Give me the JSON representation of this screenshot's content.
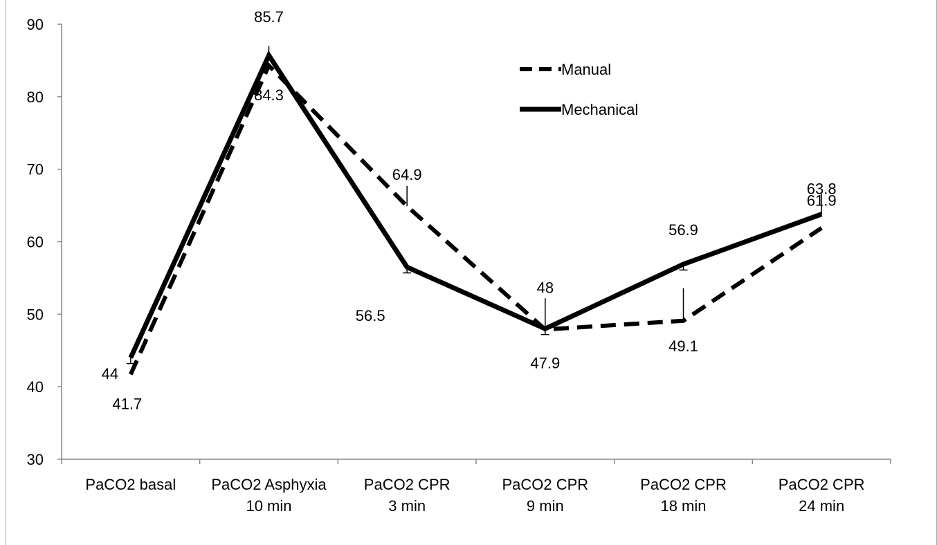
{
  "chart_data": {
    "type": "line",
    "title": "",
    "xlabel": "",
    "ylabel": "",
    "ylim": [
      30,
      90
    ],
    "y_ticks": [
      "30",
      "40",
      "50",
      "60",
      "70",
      "80",
      "90"
    ],
    "categories": [
      [
        "PaCO2 basal"
      ],
      [
        "PaCO2 Asphyxia",
        "10 min"
      ],
      [
        "PaCO2 CPR",
        "3 min"
      ],
      [
        "PaCO2 CPR",
        "9 min"
      ],
      [
        "PaCO2 CPR",
        "18 min"
      ],
      [
        "PaCO2 CPR",
        "24 min"
      ]
    ],
    "grid": false,
    "legend_position": "top-right",
    "series": [
      {
        "name": "Manual",
        "style": "dashed",
        "color": "#000000",
        "values": [
          41.7,
          84.3,
          64.9,
          47.9,
          49.1,
          61.9
        ],
        "labels": [
          "41.7",
          "84.3",
          "64.9",
          "47.9",
          "49.1",
          "61.9"
        ],
        "error_upper": [
          0,
          0,
          2.8,
          0,
          4.5,
          0
        ],
        "error_lower": [
          0,
          0,
          0,
          0,
          0,
          0
        ]
      },
      {
        "name": "Mechanical",
        "style": "solid",
        "color": "#000000",
        "values": [
          44,
          85.7,
          56.5,
          48,
          56.9,
          63.8
        ],
        "labels": [
          "44",
          "85.7",
          "56.5",
          "48",
          "56.9",
          "63.8"
        ],
        "error_upper": [
          0,
          1.3,
          0,
          4.2,
          0,
          2.8
        ],
        "error_lower": [
          0.8,
          0,
          0.8,
          0.8,
          0.8,
          0
        ]
      }
    ]
  }
}
